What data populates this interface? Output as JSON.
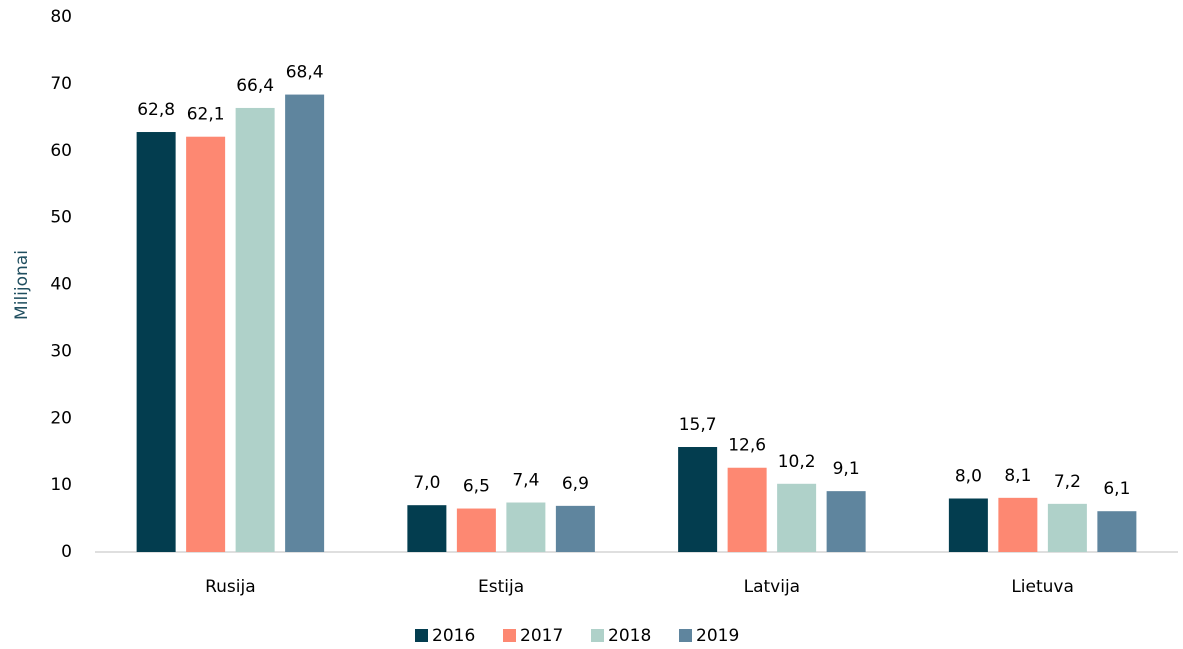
{
  "chart_data": {
    "type": "bar",
    "y_label": "Milijonai",
    "categories": [
      "Rusija",
      "Estija",
      "Latvija",
      "Lietuva"
    ],
    "series": [
      {
        "name": "2016",
        "color": "#033d4f",
        "values": [
          62.8,
          7.0,
          15.7,
          8.0
        ],
        "value_labels": [
          "62,8",
          "7,0",
          "15,7",
          "8,0"
        ]
      },
      {
        "name": "2017",
        "color": "#fd8872",
        "values": [
          62.1,
          6.5,
          12.6,
          8.1
        ],
        "value_labels": [
          "62,1",
          "6,5",
          "12,6",
          "8,1"
        ]
      },
      {
        "name": "2018",
        "color": "#afd1c9",
        "values": [
          66.4,
          7.4,
          10.2,
          7.2
        ],
        "value_labels": [
          "66,4",
          "7,4",
          "10,2",
          "7,2"
        ]
      },
      {
        "name": "2019",
        "color": "#5f859e",
        "values": [
          68.4,
          6.9,
          9.1,
          6.1
        ],
        "value_labels": [
          "68,4",
          "6,9",
          "9,1",
          "6,1"
        ]
      }
    ],
    "ylim": [
      0,
      80
    ],
    "yticks": [
      0,
      10,
      20,
      30,
      40,
      50,
      60,
      70,
      80
    ],
    "grid": false
  }
}
